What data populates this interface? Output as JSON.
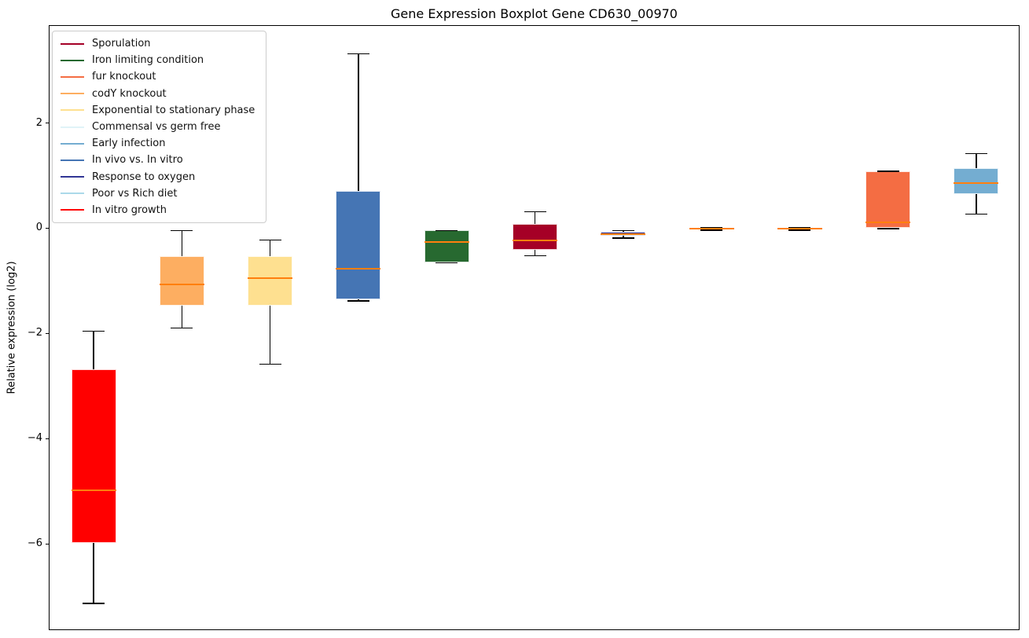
{
  "title": "Gene Expression Boxplot Gene CD630_00970",
  "y_axis": {
    "label": "Relative expression (log2)",
    "ticks": [
      {
        "value": 2,
        "label": "2"
      },
      {
        "value": 0,
        "label": "0"
      },
      {
        "value": -2,
        "label": "−2"
      },
      {
        "value": -4,
        "label": "−4"
      },
      {
        "value": -6,
        "label": "−6"
      }
    ]
  },
  "legend": {
    "items": [
      {
        "label": "Sporulation",
        "color": "#a50026"
      },
      {
        "label": "Iron limiting condition",
        "color": "#276930"
      },
      {
        "label": "fur knockout",
        "color": "#f46d43"
      },
      {
        "label": "codY knockout",
        "color": "#fdae61"
      },
      {
        "label": "Exponential to stationary phase",
        "color": "#fee090"
      },
      {
        "label": "Commensal vs germ free",
        "color": "#e0f3f8"
      },
      {
        "label": "Early infection",
        "color": "#74add1"
      },
      {
        "label": "In vivo vs. In vitro",
        "color": "#4575b4"
      },
      {
        "label": "Response to oxygen",
        "color": "#313695"
      },
      {
        "label": "Poor vs Rich diet",
        "color": "#abd9e9"
      },
      {
        "label": "In vitro growth",
        "color": "#ff0000"
      }
    ]
  },
  "chart_data": {
    "type": "boxplot",
    "title": "Gene Expression Boxplot Gene CD630_00970",
    "ylabel": "Relative expression (log2)",
    "ylim": [
      -7.64,
      3.86
    ],
    "yticks": [
      2,
      0,
      -2,
      -4,
      -6
    ],
    "grid": false,
    "legend_position": "upper left",
    "median_color": "#ff7f0e",
    "whisker_color": "#000000",
    "x_tick_labels": [],
    "boxes": [
      {
        "condition": "In vitro growth",
        "color": "#ff0000",
        "whisker_low": -7.12,
        "q1": -5.97,
        "median": -4.97,
        "q3": -2.67,
        "whisker_high": -1.94
      },
      {
        "condition": "codY knockout",
        "color": "#fdae61",
        "whisker_low": -1.88,
        "q1": -1.46,
        "median": -1.05,
        "q3": -0.52,
        "whisker_high": -0.03
      },
      {
        "condition": "Exponential to stationary phase",
        "color": "#fee090",
        "whisker_low": -2.57,
        "q1": -1.46,
        "median": -0.93,
        "q3": -0.51,
        "whisker_high": -0.21
      },
      {
        "condition": "In vivo vs. In vitro",
        "color": "#4575b4",
        "whisker_low": -1.37,
        "q1": -1.34,
        "median": -0.76,
        "q3": 0.72,
        "whisker_high": 3.33
      },
      {
        "condition": "Iron limiting condition",
        "color": "#276930",
        "whisker_low": -0.64,
        "q1": -0.64,
        "median": -0.25,
        "q3": -0.03,
        "whisker_high": -0.03
      },
      {
        "condition": "Sporulation",
        "color": "#a50026",
        "whisker_low": -0.51,
        "q1": -0.39,
        "median": -0.21,
        "q3": 0.1,
        "whisker_high": 0.33
      },
      {
        "condition": "Response to oxygen",
        "color": "#313695",
        "whisker_low": -0.17,
        "q1": -0.13,
        "median": -0.1,
        "q3": -0.06,
        "whisker_high": -0.03
      },
      {
        "condition": "Commensal vs germ free",
        "color": "#e0f3f8",
        "whisker_low": -0.02,
        "q1": -0.01,
        "median": 0.0,
        "q3": 0.01,
        "whisker_high": 0.02
      },
      {
        "condition": "Poor vs Rich diet",
        "color": "#abd9e9",
        "whisker_low": -0.02,
        "q1": -0.01,
        "median": 0.0,
        "q3": 0.01,
        "whisker_high": 0.02
      },
      {
        "condition": "fur knockout",
        "color": "#f46d43",
        "whisker_low": 0.01,
        "q1": 0.02,
        "median": 0.12,
        "q3": 1.1,
        "whisker_high": 1.1
      },
      {
        "condition": "Early infection",
        "color": "#74add1",
        "whisker_low": 0.28,
        "q1": 0.67,
        "median": 0.87,
        "q3": 1.15,
        "whisker_high": 1.43
      }
    ]
  }
}
